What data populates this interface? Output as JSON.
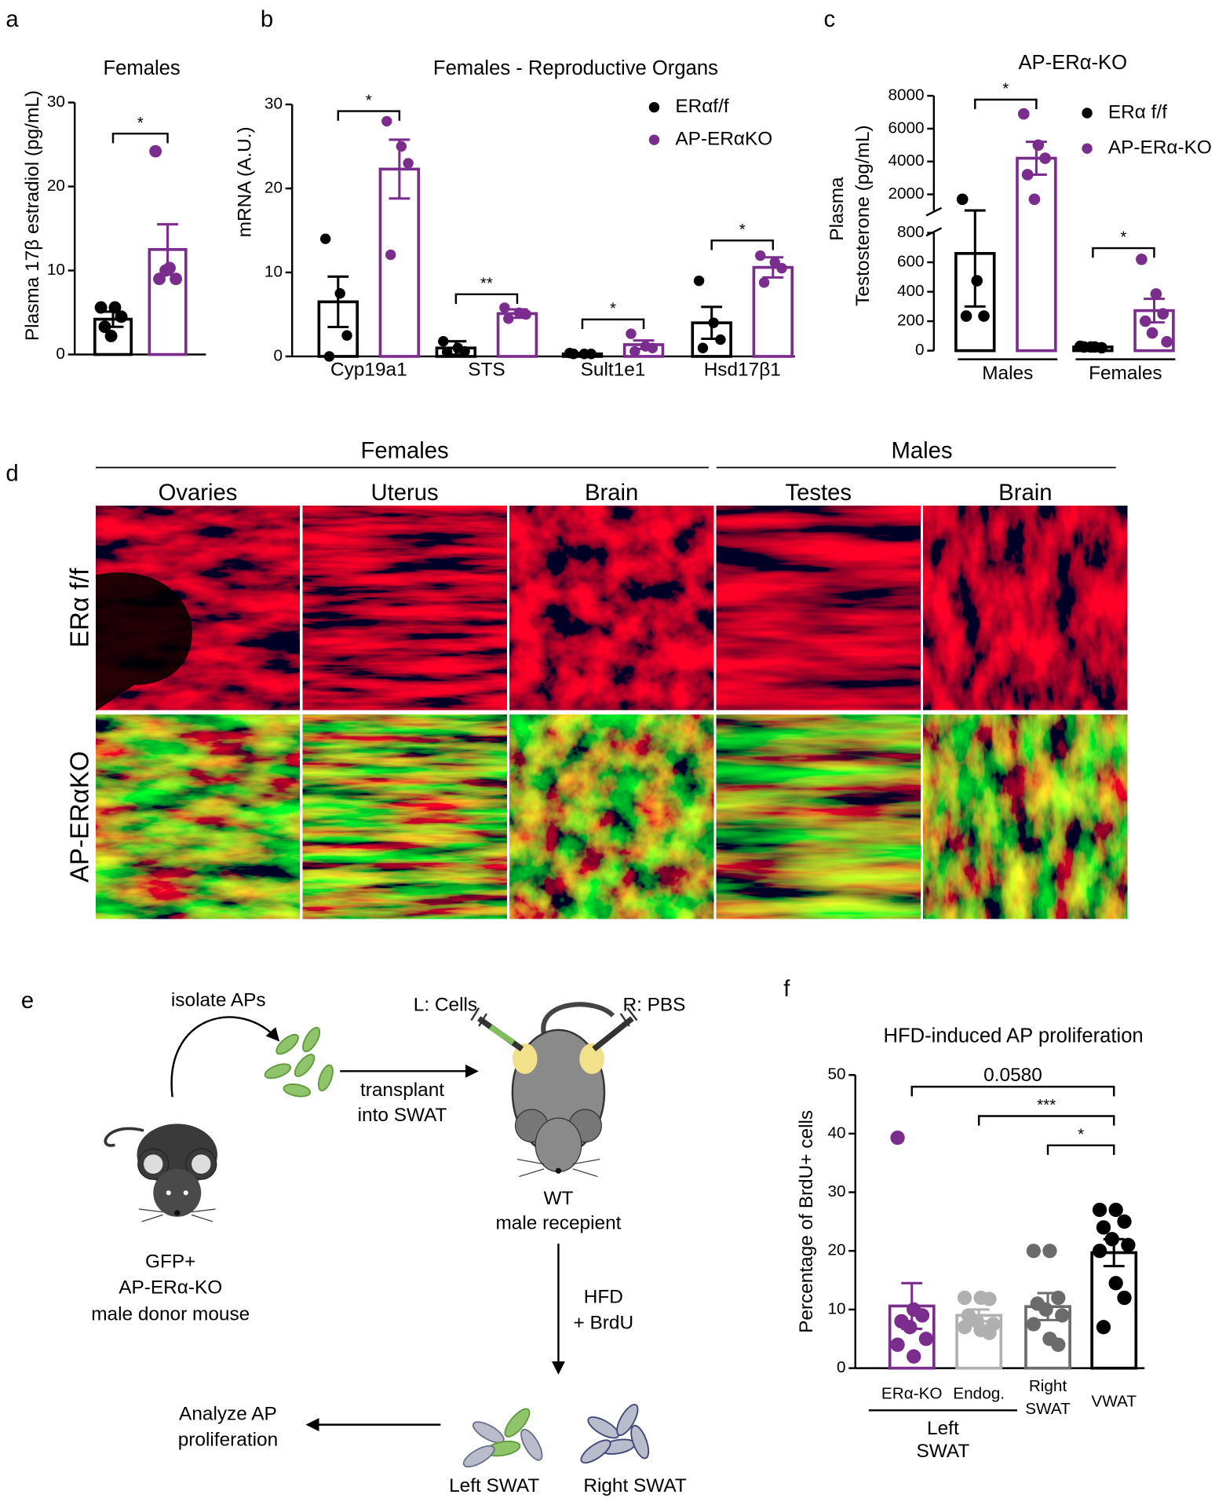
{
  "panel_labels": [
    "a",
    "b",
    "c",
    "d",
    "e",
    "f"
  ],
  "chart_data": [
    {
      "type": "bar",
      "title": "Females",
      "ylabel": "Plasma 17β estradiol (pg/mL)",
      "categories": [
        null,
        null
      ],
      "ylim": [
        0,
        30
      ],
      "yticks": [
        0,
        10,
        20,
        30
      ],
      "series": [
        {
          "colors": [
            "#000000",
            "#7b2d8e"
          ],
          "values": [
            4.2,
            12.5
          ],
          "errors": [
            0.9,
            3.0
          ],
          "points": [
            [
              5.6,
              5.6,
              4.5,
              3.3,
              2.2
            ],
            [
              24.2,
              10.3,
              9.0,
              9.0,
              10.0
            ]
          ]
        }
      ],
      "brackets": [
        {
          "from": 0,
          "to": 1,
          "y": 26.3,
          "label": "*"
        }
      ]
    },
    {
      "type": "bar",
      "title": "Females - Reproductive Organs",
      "ylabel": "mRNA (A.U.)",
      "categories": [
        "Cyp19a1",
        "STS",
        "Sult1e1",
        "Hsd17β1"
      ],
      "ylim": [
        0,
        30
      ],
      "yticks": [
        0,
        10,
        20,
        30
      ],
      "series": [
        {
          "name": "ERαf/f",
          "color": "#000000",
          "values": [
            6.5,
            1.0,
            0.3,
            4.0
          ],
          "errors": [
            3.0,
            0.8,
            0.1,
            1.9
          ],
          "points": [
            [
              14,
              7.5,
              2.5,
              0
            ],
            [
              1.8,
              1.0,
              0.6,
              0.5
            ],
            [
              0.4,
              0.3,
              0.3,
              0.3
            ],
            [
              9,
              4,
              2,
              1
            ]
          ]
        },
        {
          "name": "AP-ERαKO",
          "color": "#7b2d8e",
          "values": [
            22.3,
            5.1,
            1.4,
            10.6
          ],
          "errors": [
            3.5,
            0.5,
            0.5,
            1.2
          ],
          "points": [
            [
              28,
              25,
              23,
              12.1
            ],
            [
              5.8,
              5.2,
              5.0,
              4.5
            ],
            [
              2.7,
              1.2,
              1.0,
              0.6
            ],
            [
              12,
              11.2,
              10.5,
              8.8
            ]
          ]
        }
      ],
      "brackets": [
        {
          "category": 0,
          "y": 29.2,
          "label": "*"
        },
        {
          "category": 1,
          "y": 7.4,
          "label": "**"
        },
        {
          "category": 2,
          "y": 4.4,
          "label": "*"
        },
        {
          "category": 3,
          "y": 13.8,
          "label": "*"
        }
      ]
    },
    {
      "type": "bar",
      "title": "AP-ERα-KO",
      "ylabel": [
        "Plasma",
        "Testosterone (pg/mL)"
      ],
      "categories": [
        "Males",
        "Females"
      ],
      "ylim": [
        0,
        8000
      ],
      "axis_break": [
        800,
        1000
      ],
      "yticks": [
        0,
        200,
        400,
        600,
        800,
        2000,
        4000,
        6000,
        8000
      ],
      "series": [
        {
          "name": "ERα f/f",
          "color": "#000000",
          "values": [
            660,
            25
          ],
          "errors": [
            360,
            4
          ],
          "points": [
            [
              1700,
              475,
              235,
              235
            ],
            [
              30,
              25,
              20,
              25,
              25
            ]
          ]
        },
        {
          "name": "AP-ERα-KO",
          "color": "#7b2d8e",
          "values": [
            4200,
            272
          ],
          "errors": [
            1000,
            80
          ],
          "points": [
            [
              6900,
              5000,
              4200,
              3200,
              1700
            ],
            [
              620,
              385,
              250,
              200,
              120,
              60
            ]
          ]
        }
      ],
      "brackets": [
        {
          "category": 0,
          "y": 7770,
          "label": "*"
        },
        {
          "category": 1,
          "y": 696,
          "label": "*"
        }
      ]
    },
    {
      "type": "bar",
      "title": "HFD-induced AP proliferation",
      "ylabel": "Percentage of BrdU+ cells",
      "categories": [
        "ERα-KO",
        "Endog.",
        "Right SWAT",
        "VWAT"
      ],
      "group_label": "Left SWAT",
      "ylim": [
        0,
        50
      ],
      "yticks": [
        0,
        10,
        20,
        30,
        40,
        50
      ],
      "series": [
        {
          "colors": [
            "#7b2d8e",
            "#b0b0b0",
            "#6b6b6b",
            "#000000"
          ],
          "values": [
            10.6,
            9.0,
            10.5,
            19.7
          ],
          "errors": [
            3.9,
            1.0,
            2.3,
            2.3
          ],
          "points": [
            [
              39.3,
              10,
              9,
              8,
              7,
              5,
              4,
              2
            ],
            [
              12,
              12,
              11.8,
              9,
              8,
              7.5,
              7,
              6.5,
              6
            ],
            [
              20,
              20,
              12,
              11,
              10,
              9,
              7.5,
              5,
              4
            ],
            [
              27,
              27,
              25,
              24,
              22,
              21,
              20,
              14.5,
              12,
              7
            ]
          ]
        }
      ],
      "brackets": [
        {
          "from": 0,
          "to": 3,
          "y": 48,
          "label": "0.0580"
        },
        {
          "from": 1,
          "to": 3,
          "y": 43,
          "label": "***"
        },
        {
          "from": 2,
          "to": 3,
          "y": 38,
          "label": "*"
        }
      ]
    }
  ],
  "figure_d": {
    "groups": [
      {
        "label": "Females",
        "columns": [
          "Ovaries",
          "Uterus",
          "Brain"
        ]
      },
      {
        "label": "Males",
        "columns": [
          "Testes",
          "Brain"
        ]
      }
    ],
    "rows": [
      "ERα f/f",
      "AP-ERαKO"
    ]
  },
  "diagram_e": {
    "isolate": "isolate APs",
    "left_injection": "L: Cells",
    "right_injection": "R: PBS",
    "transplant": [
      "transplant",
      "into SWAT"
    ],
    "recipient": [
      "WT",
      "male recepient"
    ],
    "donor": [
      "GFP+",
      "AP-ERα-KO",
      "male donor mouse"
    ],
    "treatment": [
      "HFD",
      "+ BrdU"
    ],
    "analysis": [
      "Analyze AP",
      "proliferation"
    ],
    "left_depot": "Left SWAT",
    "right_depot": "Right SWAT"
  }
}
